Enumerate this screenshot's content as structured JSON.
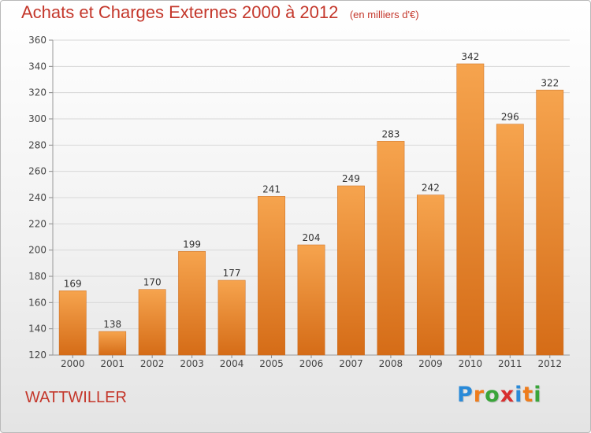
{
  "title": "Achats et Charges Externes 2000 à 2012",
  "subtitle": "(en milliers d'€)",
  "place": "WATTWILLER",
  "logo": {
    "text": "Proxiti",
    "letters": [
      {
        "ch": "P",
        "color": "#2a8ad8"
      },
      {
        "ch": "r",
        "color": "#ee7c1c"
      },
      {
        "ch": "o",
        "color": "#3aa53a"
      },
      {
        "ch": "x",
        "color": "#d82f2f"
      },
      {
        "ch": "i",
        "color": "#2a8ad8"
      },
      {
        "ch": "t",
        "color": "#ee7c1c"
      },
      {
        "ch": "i",
        "color": "#3aa53a"
      }
    ]
  },
  "chart_data": {
    "type": "bar",
    "title": "Achats et Charges Externes 2000 à 2012",
    "subtitle": "(en milliers d'€)",
    "xlabel": "",
    "ylabel": "",
    "categories": [
      "2000",
      "2001",
      "2002",
      "2003",
      "2004",
      "2005",
      "2006",
      "2007",
      "2008",
      "2009",
      "2010",
      "2011",
      "2012"
    ],
    "values": [
      169,
      138,
      170,
      199,
      177,
      241,
      204,
      249,
      283,
      242,
      342,
      296,
      322
    ],
    "ylim": [
      120,
      360
    ],
    "yticks": [
      120,
      140,
      160,
      180,
      200,
      220,
      240,
      260,
      280,
      300,
      320,
      340,
      360
    ],
    "grid": true,
    "legend": "none",
    "colors": {
      "bar_top": "#f6a44e",
      "bar_bottom": "#d56c17",
      "grid": "#d8d8d8",
      "title": "#c4372b"
    }
  }
}
